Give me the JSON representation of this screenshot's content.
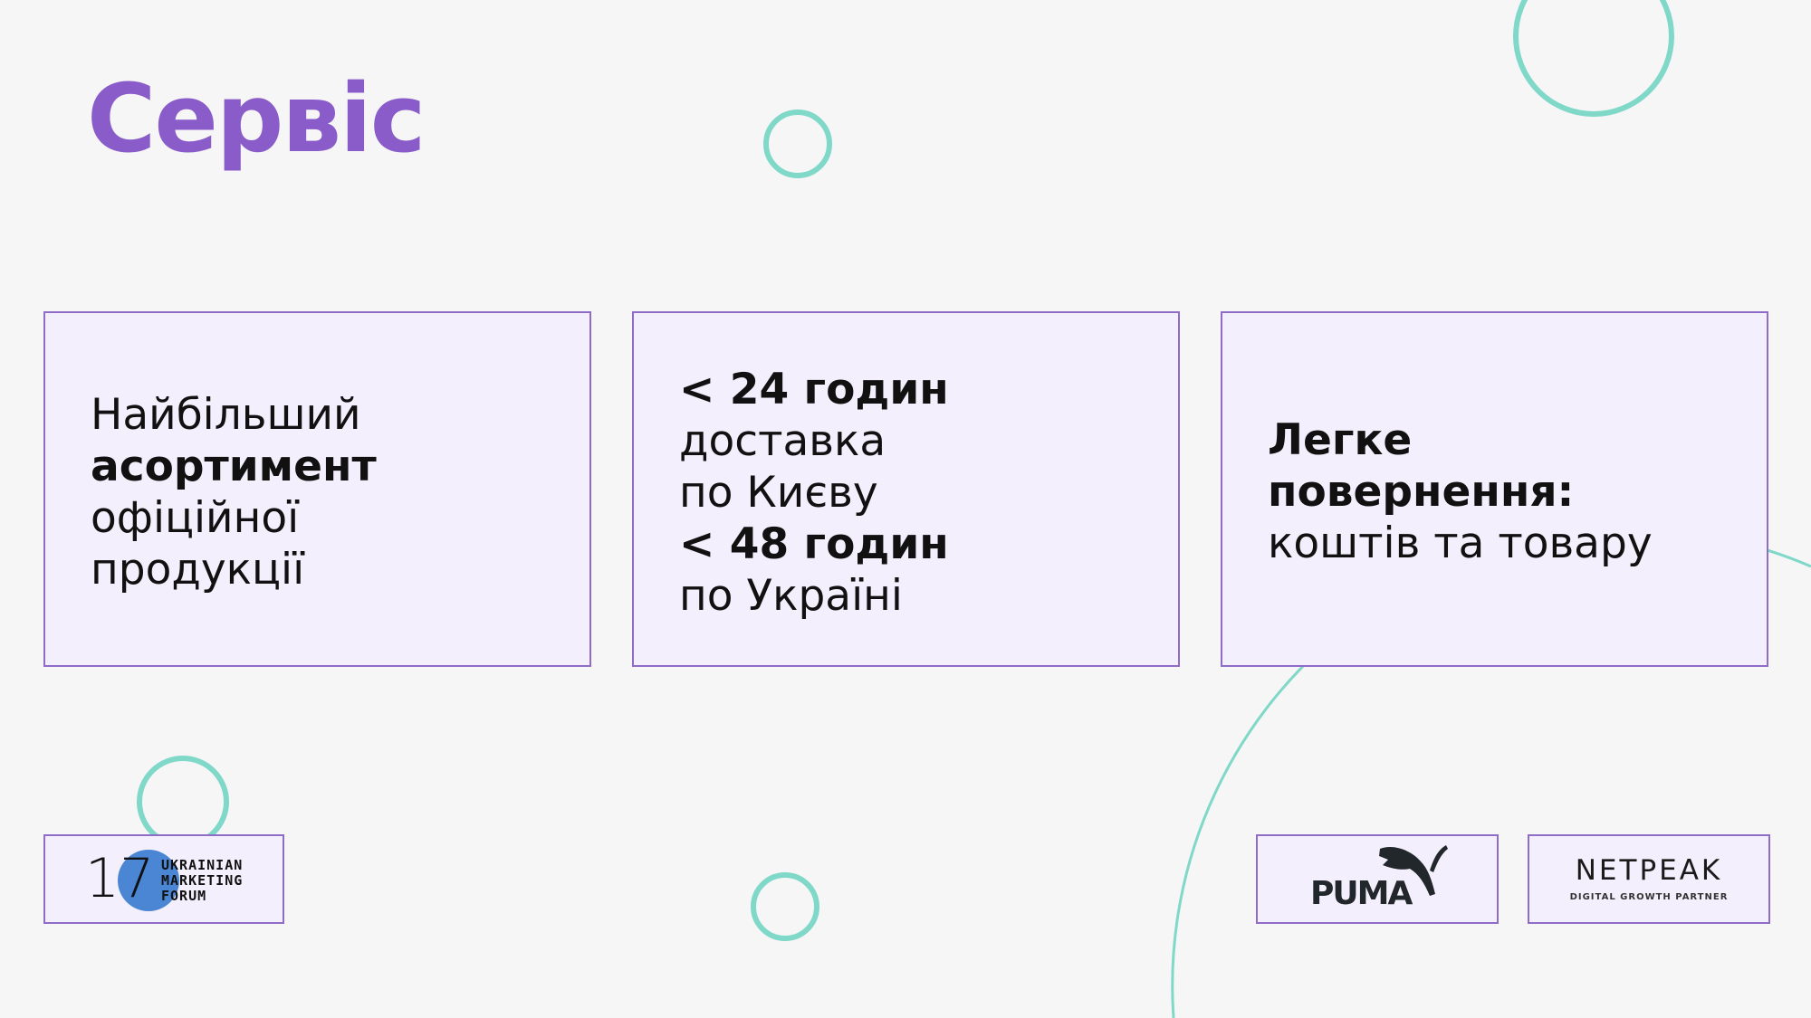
{
  "title": "Сервіс",
  "cards": [
    {
      "line1": "Найбільший",
      "bold1": "асортимент",
      "line3": "офіційної",
      "line4": "продукції"
    },
    {
      "bold1": "< 24 годин",
      "line2": "доставка",
      "line3": "по Києву",
      "bold2": "< 48 годин",
      "line5": "по Україні"
    },
    {
      "bold1": "Легке",
      "bold2": "повернення:",
      "line3": "коштів та товару"
    }
  ],
  "logos": {
    "umf": {
      "number": "17",
      "line1": "UKRAINIAN",
      "line2": "MARKETING",
      "line3": "FORUM"
    },
    "puma": {
      "text": "PUMA"
    },
    "netpeak": {
      "text": "NETPEAK",
      "tagline": "DIGITAL GROWTH PARTNER"
    }
  },
  "colors": {
    "accent": "#8a5cc9",
    "decor": "#7fd8c8",
    "card_bg": "#f4effc",
    "border": "#8e6cc7"
  }
}
